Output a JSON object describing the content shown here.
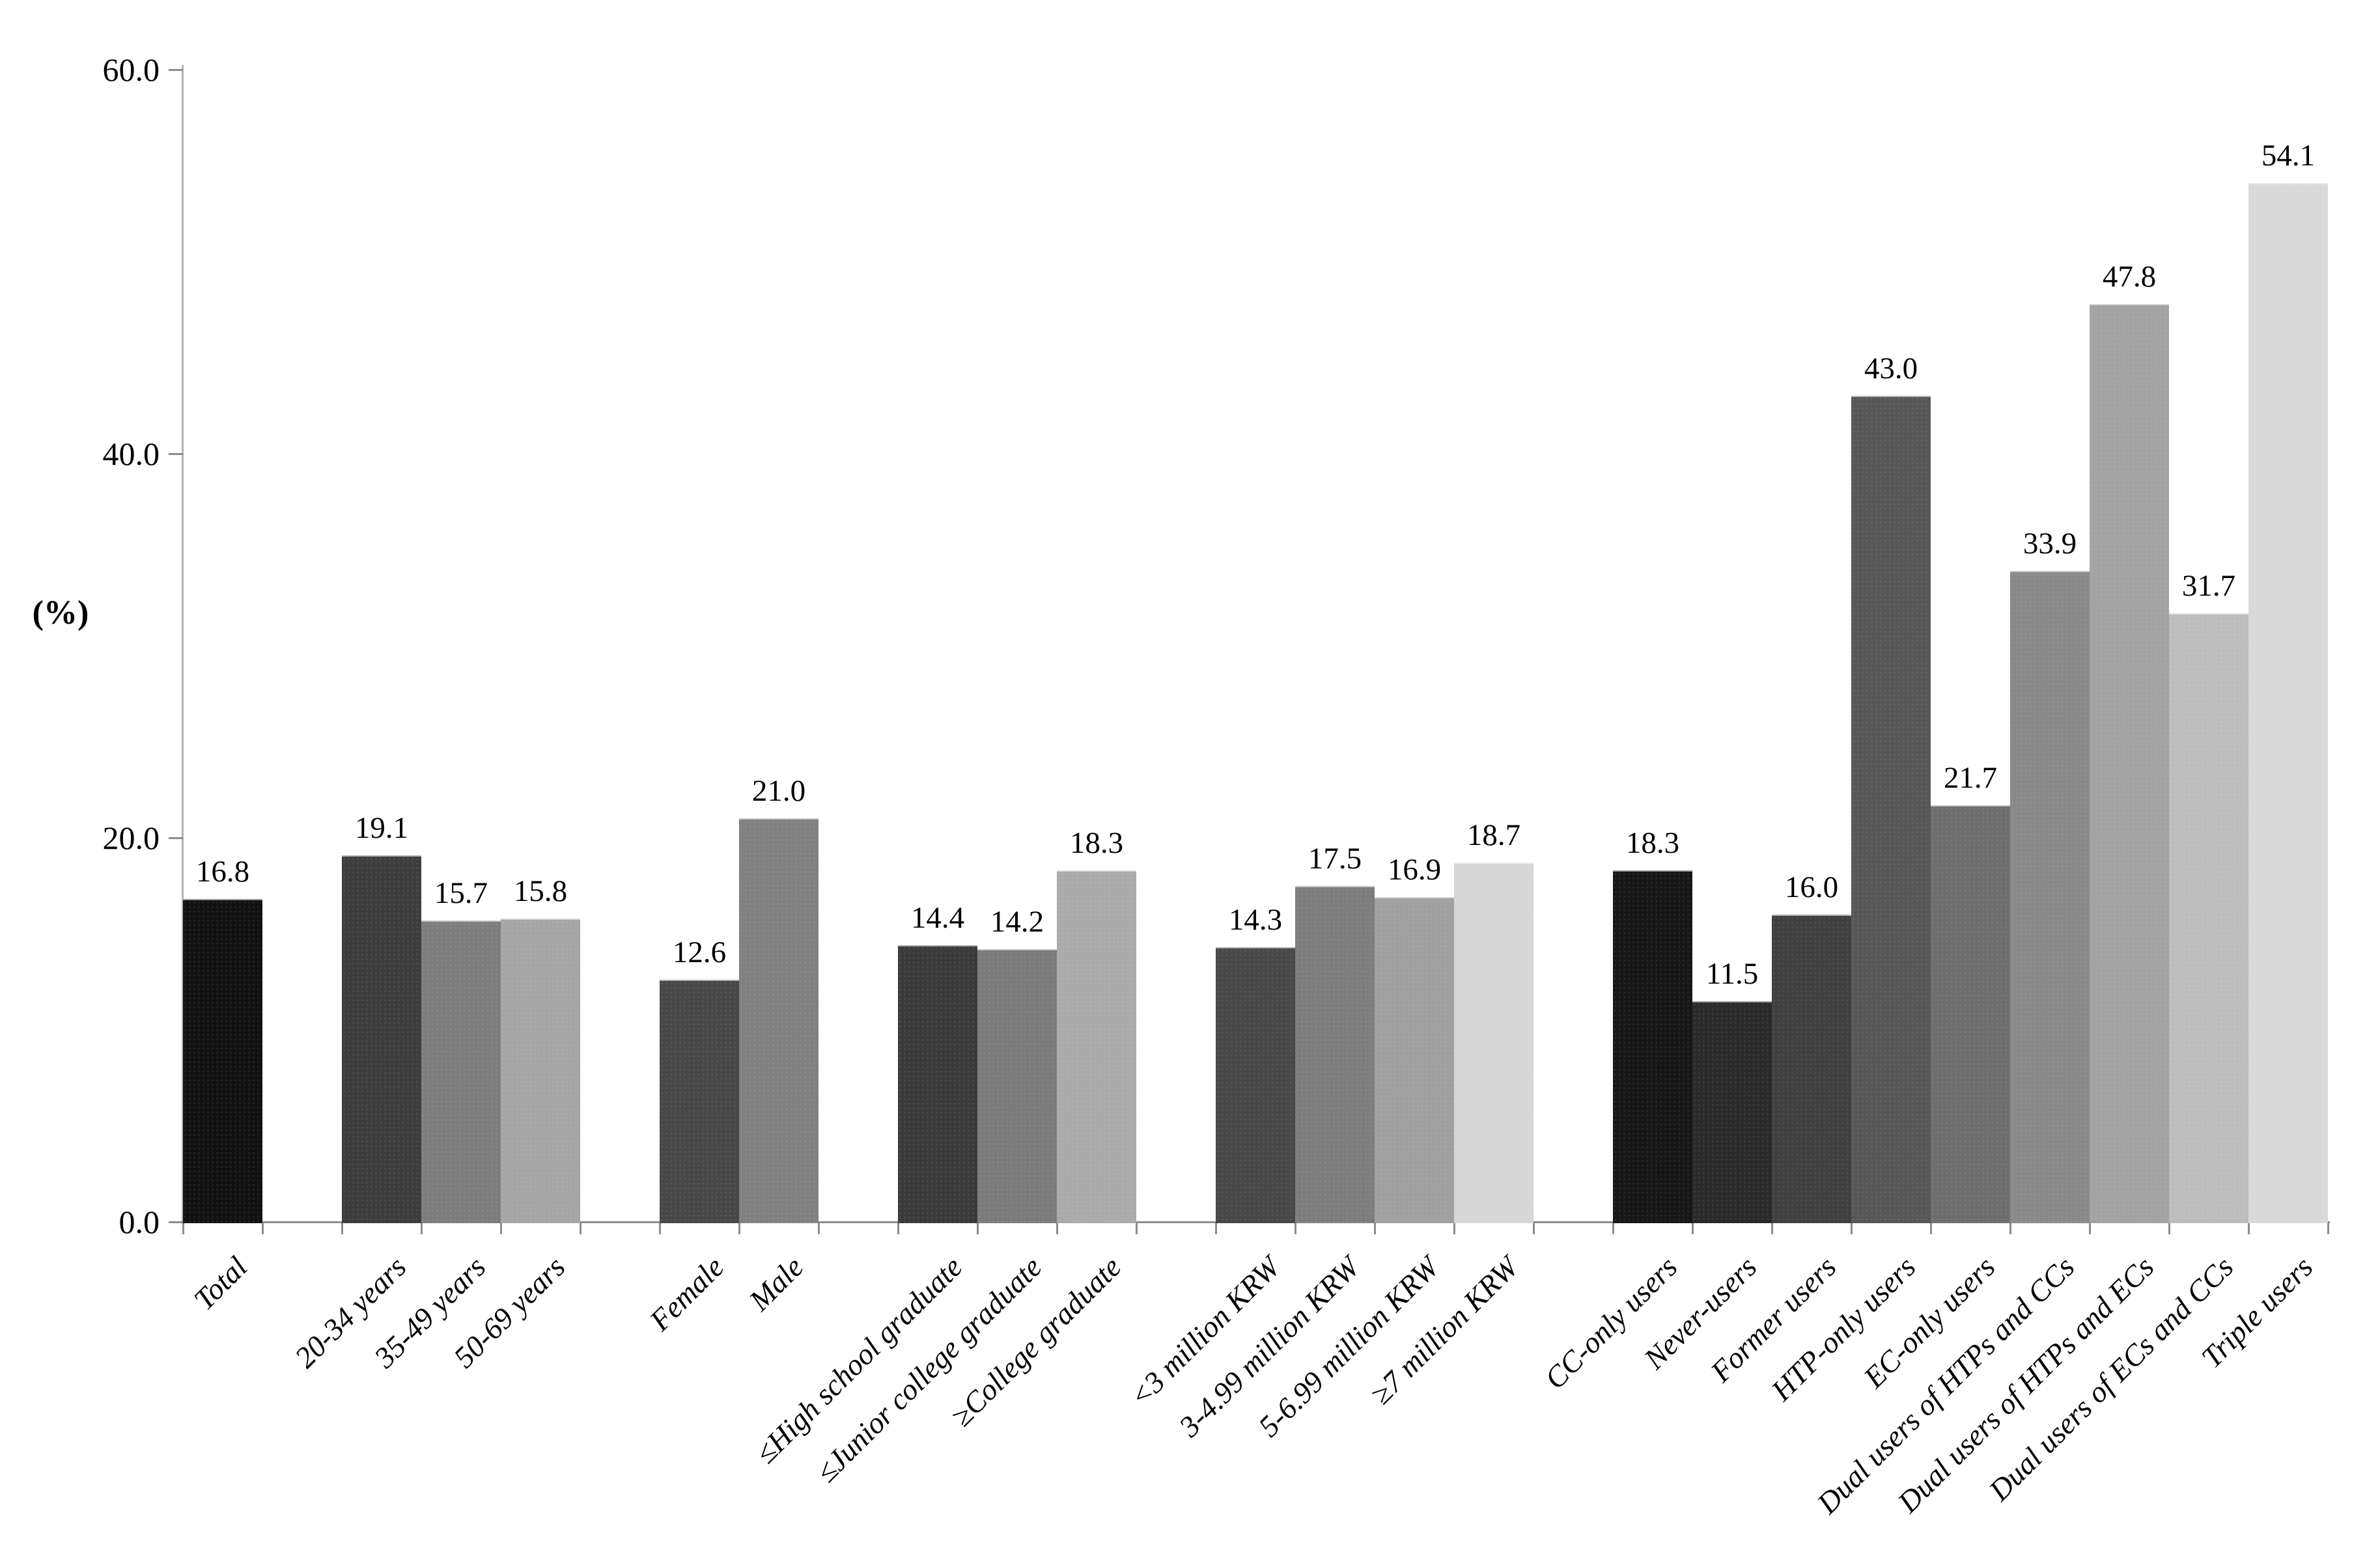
{
  "chart_data": {
    "type": "bar",
    "title": "",
    "xlabel": "",
    "ylabel": "(%)",
    "ylim": [
      0,
      60
    ],
    "grid": false,
    "legend": "none",
    "bar_label_style": "value above each bar, one decimal",
    "yticks": [
      {
        "value": 0,
        "label": "0.0"
      },
      {
        "value": 20,
        "label": "20.0"
      },
      {
        "value": 40,
        "label": "40.0"
      },
      {
        "value": 60,
        "label": "60.0"
      }
    ],
    "groups": [
      {
        "name": "total",
        "categories": [
          "Total"
        ],
        "values": [
          16.8
        ],
        "labels": [
          "16.8"
        ],
        "colors": [
          "#111111"
        ]
      },
      {
        "name": "age",
        "categories": [
          "20-34 years",
          "35-49 years",
          "50-69 years"
        ],
        "values": [
          19.1,
          15.7,
          15.8
        ],
        "labels": [
          "19.1",
          "15.7",
          "15.8"
        ],
        "colors": [
          "#3d3d3d",
          "#7d7d7d",
          "#a5a5a5"
        ]
      },
      {
        "name": "sex",
        "categories": [
          "Female",
          "Male"
        ],
        "values": [
          12.6,
          21.0
        ],
        "labels": [
          "12.6",
          "21.0"
        ],
        "colors": [
          "#474747",
          "#808080"
        ]
      },
      {
        "name": "education",
        "categories": [
          "≤High school graduate",
          "≤Junior college graduate",
          "≥College graduate"
        ],
        "values": [
          14.4,
          14.2,
          18.3
        ],
        "labels": [
          "14.4",
          "14.2",
          "18.3"
        ],
        "colors": [
          "#3a3a3a",
          "#7b7b7b",
          "#aaaaaa"
        ]
      },
      {
        "name": "income",
        "categories": [
          "<3 million KRW",
          "3-4.99 million KRW",
          "5-6.99 million KRW",
          "≥7 million KRW"
        ],
        "values": [
          14.3,
          17.5,
          16.9,
          18.7
        ],
        "labels": [
          "14.3",
          "17.5",
          "16.9",
          "18.7"
        ],
        "colors": [
          "#484848",
          "#7d7d7d",
          "#a0a0a0",
          "#d6d6d6"
        ]
      },
      {
        "name": "tobacco-use",
        "categories": [
          "CC-only users",
          "Never-users",
          "Former users",
          "HTP-only users",
          "EC-only users",
          "Dual users of HTPs and CCs",
          "Dual users of HTPs and ECs",
          "Dual users of ECs and CCs",
          "Triple users"
        ],
        "values": [
          18.3,
          11.5,
          16.0,
          43.0,
          21.7,
          33.9,
          47.8,
          31.7,
          54.1
        ],
        "labels": [
          "18.3",
          "11.5",
          "16.0",
          "43.0",
          "21.7",
          "33.9",
          "47.8",
          "31.7",
          "54.1"
        ],
        "colors": [
          "#161616",
          "#2a2a2a",
          "#404040",
          "#575757",
          "#6e6e6e",
          "#898989",
          "#a3a3a3",
          "#bdbdbd",
          "#d8d8d8"
        ]
      }
    ]
  }
}
